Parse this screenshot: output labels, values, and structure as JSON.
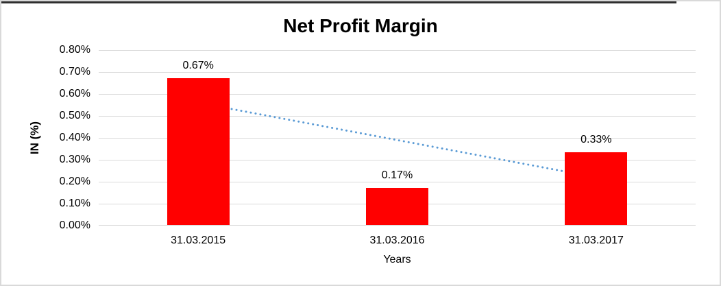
{
  "chart_data": {
    "type": "bar",
    "title": "Net Profit Margin",
    "xlabel": "Years",
    "ylabel": "IN (%)",
    "categories": [
      "31.03.2015",
      "31.03.2016",
      "31.03.2017"
    ],
    "series": [
      {
        "name": "Net Profit Margin",
        "values": [
          0.67,
          0.17,
          0.33
        ],
        "data_labels": [
          "0.67%",
          "0.17%",
          "0.33%"
        ],
        "color": "#FF0000"
      }
    ],
    "ylim": [
      0,
      0.8
    ],
    "ytick_step": 0.1,
    "ytick_labels": [
      "0.00%",
      "0.10%",
      "0.20%",
      "0.30%",
      "0.40%",
      "0.50%",
      "0.60%",
      "0.70%",
      "0.80%"
    ],
    "grid": true,
    "gridline_color": "#D9D9D9",
    "legend": "none",
    "trendline": {
      "type": "linear",
      "style": "dotted",
      "color": "#5B9BD5",
      "start_value": 0.56,
      "end_value": 0.22
    }
  }
}
